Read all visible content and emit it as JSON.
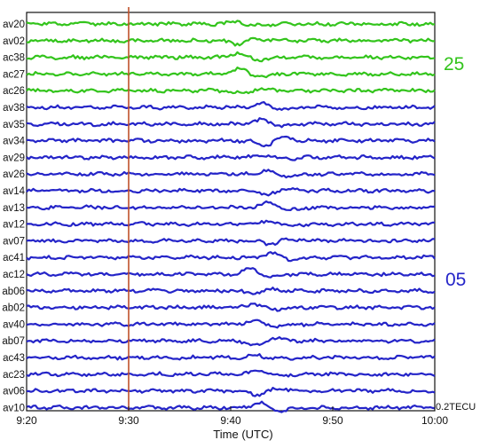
{
  "chart_data": {
    "type": "line",
    "xlabel": "Time (UTC)",
    "x_ticks": [
      "9:20",
      "9:30",
      "9:40",
      "9:50",
      "10:00"
    ],
    "x_range": [
      "9:20",
      "10:00"
    ],
    "marker_time": "9:30",
    "marker_color": "#c0502a",
    "scale_label": "0.2TECU",
    "groups": [
      {
        "label": "25",
        "color": "#33c41c",
        "stations": [
          "av20",
          "av02",
          "ac38",
          "ac27",
          "ac26"
        ],
        "disturbance_time": "9:41"
      },
      {
        "label": "05",
        "color": "#2424c8",
        "stations": [
          "av38",
          "av35",
          "av34",
          "av29",
          "av26",
          "av14",
          "av13",
          "av12",
          "av07",
          "ac41",
          "ac12",
          "ab06",
          "ab02",
          "av40",
          "ab07",
          "ac43",
          "ac23",
          "av06",
          "av10"
        ],
        "disturbance_time": "9:43"
      }
    ]
  }
}
